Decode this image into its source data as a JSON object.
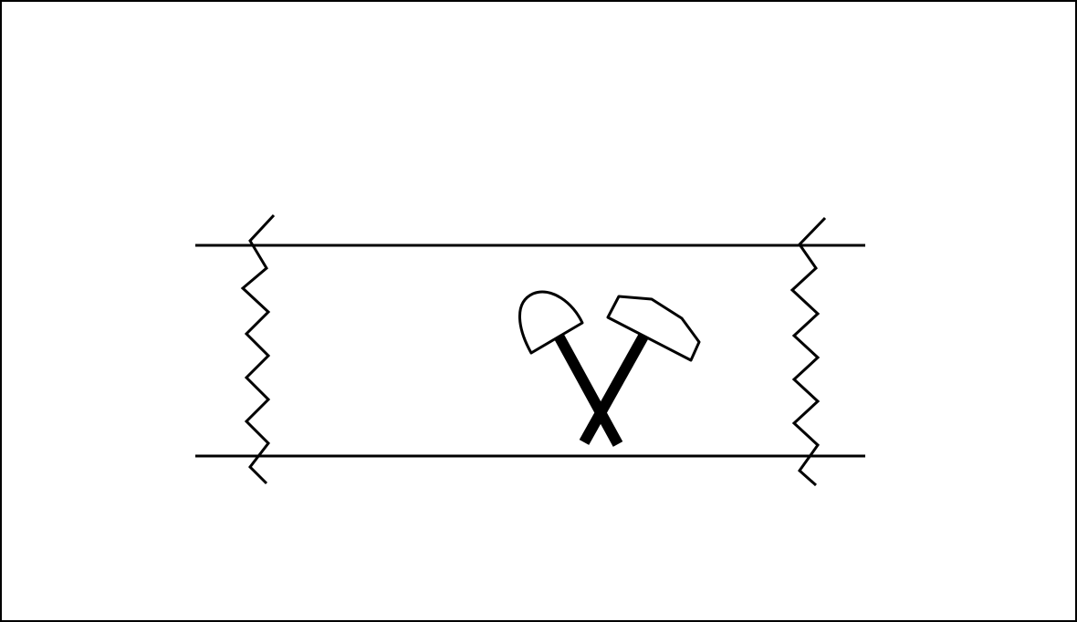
{
  "diagram": {
    "description_symbol": "crossed-hammers-icon",
    "border_color": "#000000",
    "stroke_color": "#000000",
    "background_color": "#ffffff"
  }
}
